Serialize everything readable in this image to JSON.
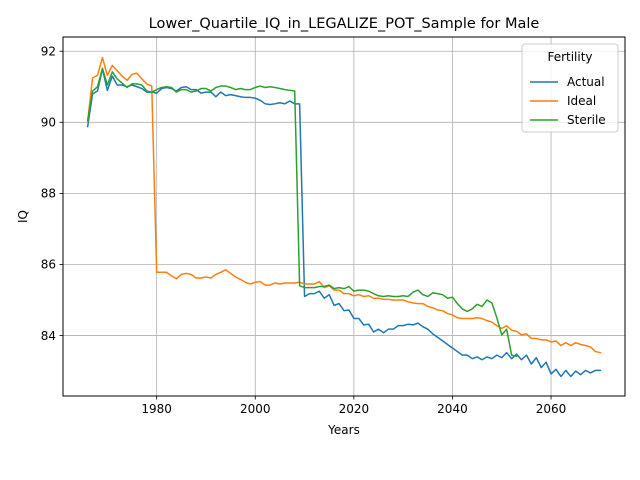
{
  "chart_data": {
    "type": "line",
    "title": "Lower_Quartile_IQ_in_LEGALIZE_POT_Sample for Male",
    "xlabel": "Years",
    "ylabel": "IQ",
    "xlim": [
      1961,
      2075
    ],
    "ylim": [
      82.3,
      92.4
    ],
    "x_ticks": [
      1980,
      2000,
      2020,
      2040,
      2060
    ],
    "y_ticks": [
      84,
      86,
      88,
      90,
      92
    ],
    "grid": true,
    "legend": {
      "title": "Fertility",
      "position": "top-right"
    },
    "series": [
      {
        "name": "Actual",
        "color": "#1f77b4",
        "x": [
          1966,
          1967,
          1968,
          1969,
          1970,
          1971,
          1972,
          1973,
          1974,
          1975,
          1976,
          1977,
          1978,
          1979,
          1980,
          1981,
          1982,
          1983,
          1984,
          1985,
          1986,
          1987,
          1988,
          1989,
          1990,
          1991,
          1992,
          1993,
          1994,
          1995,
          1996,
          1997,
          1998,
          1999,
          2000,
          2001,
          2002,
          2003,
          2004,
          2005,
          2006,
          2007,
          2008,
          2009,
          2010,
          2011,
          2012,
          2013,
          2014,
          2015,
          2016,
          2017,
          2018,
          2019,
          2020,
          2021,
          2022,
          2023,
          2024,
          2025,
          2026,
          2027,
          2028,
          2029,
          2030,
          2031,
          2032,
          2033,
          2034,
          2035,
          2036,
          2037,
          2038,
          2039,
          2040,
          2041,
          2042,
          2043,
          2044,
          2045,
          2046,
          2047,
          2048,
          2049,
          2050,
          2051,
          2052,
          2053,
          2054,
          2055,
          2056,
          2057,
          2058,
          2059,
          2060,
          2061,
          2062,
          2063,
          2064,
          2065,
          2066,
          2067,
          2068,
          2069,
          2070
        ],
        "values": [
          89.88,
          90.8,
          90.88,
          91.5,
          90.9,
          91.3,
          91.05,
          91.05,
          91.0,
          91.05,
          91.0,
          90.95,
          90.85,
          90.85,
          90.82,
          90.95,
          90.98,
          90.95,
          90.88,
          90.98,
          91.0,
          90.92,
          90.92,
          90.82,
          90.85,
          90.85,
          90.72,
          90.85,
          90.75,
          90.78,
          90.75,
          90.72,
          90.7,
          90.7,
          90.68,
          90.62,
          90.52,
          90.5,
          90.52,
          90.55,
          90.52,
          90.6,
          90.52,
          90.52,
          85.1,
          85.18,
          85.18,
          85.25,
          85.05,
          85.15,
          84.85,
          84.9,
          84.7,
          84.72,
          84.48,
          84.48,
          84.3,
          84.32,
          84.1,
          84.18,
          84.08,
          84.18,
          84.18,
          84.28,
          84.28,
          84.32,
          84.3,
          84.35,
          84.25,
          84.18,
          84.05,
          83.95,
          83.85,
          83.75,
          83.65,
          83.55,
          83.45,
          83.45,
          83.35,
          83.4,
          83.32,
          83.4,
          83.35,
          83.45,
          83.38,
          83.52,
          83.35,
          83.48,
          83.32,
          83.45,
          83.2,
          83.38,
          83.1,
          83.25,
          82.92,
          83.05,
          82.85,
          83.02,
          82.85,
          83.0,
          82.9,
          83.02,
          82.95,
          83.02,
          83.02
        ]
      },
      {
        "name": "Ideal",
        "color": "#ff7f0e",
        "x": [
          1966,
          1967,
          1968,
          1969,
          1970,
          1971,
          1972,
          1973,
          1974,
          1975,
          1976,
          1977,
          1978,
          1979,
          1980,
          1981,
          1982,
          1983,
          1984,
          1985,
          1986,
          1987,
          1988,
          1989,
          1990,
          1991,
          1992,
          1993,
          1994,
          1995,
          1996,
          1997,
          1998,
          1999,
          2000,
          2001,
          2002,
          2003,
          2004,
          2005,
          2006,
          2007,
          2008,
          2009,
          2010,
          2011,
          2012,
          2013,
          2014,
          2015,
          2016,
          2017,
          2018,
          2019,
          2020,
          2021,
          2022,
          2023,
          2024,
          2025,
          2026,
          2027,
          2028,
          2029,
          2030,
          2031,
          2032,
          2033,
          2034,
          2035,
          2036,
          2037,
          2038,
          2039,
          2040,
          2041,
          2042,
          2043,
          2044,
          2045,
          2046,
          2047,
          2048,
          2049,
          2050,
          2051,
          2052,
          2053,
          2054,
          2055,
          2056,
          2057,
          2058,
          2059,
          2060,
          2061,
          2062,
          2063,
          2064,
          2065,
          2066,
          2067,
          2068,
          2069,
          2070
        ],
        "values": [
          90.02,
          91.25,
          91.32,
          91.82,
          91.32,
          91.6,
          91.45,
          91.3,
          91.18,
          91.35,
          91.38,
          91.22,
          91.08,
          91.02,
          85.78,
          85.78,
          85.78,
          85.68,
          85.6,
          85.72,
          85.75,
          85.72,
          85.62,
          85.62,
          85.65,
          85.62,
          85.72,
          85.78,
          85.85,
          85.75,
          85.65,
          85.58,
          85.5,
          85.45,
          85.5,
          85.52,
          85.42,
          85.42,
          85.48,
          85.45,
          85.48,
          85.48,
          85.48,
          85.5,
          85.45,
          85.45,
          85.45,
          85.52,
          85.35,
          85.4,
          85.28,
          85.28,
          85.18,
          85.18,
          85.12,
          85.15,
          85.1,
          85.12,
          85.05,
          85.05,
          85.02,
          85.02,
          85.0,
          85.0,
          85.0,
          84.95,
          84.92,
          84.9,
          84.9,
          84.82,
          84.78,
          84.72,
          84.7,
          84.62,
          84.58,
          84.5,
          84.48,
          84.48,
          84.48,
          84.5,
          84.48,
          84.42,
          84.38,
          84.28,
          84.2,
          84.28,
          84.15,
          84.12,
          84.02,
          84.05,
          83.92,
          83.92,
          83.88,
          83.88,
          83.82,
          83.85,
          83.72,
          83.8,
          83.72,
          83.8,
          83.75,
          83.72,
          83.68,
          83.55,
          83.52
        ]
      },
      {
        "name": "Sterile",
        "color": "#2ca02c",
        "x": [
          1966,
          1967,
          1968,
          1969,
          1970,
          1971,
          1972,
          1973,
          1974,
          1975,
          1976,
          1977,
          1978,
          1979,
          1980,
          1981,
          1982,
          1983,
          1984,
          1985,
          1986,
          1987,
          1988,
          1989,
          1990,
          1991,
          1992,
          1993,
          1994,
          1995,
          1996,
          1997,
          1998,
          1999,
          2000,
          2001,
          2002,
          2003,
          2004,
          2005,
          2006,
          2007,
          2008,
          2009,
          2010,
          2011,
          2012,
          2013,
          2014,
          2015,
          2016,
          2017,
          2018,
          2019,
          2020,
          2021,
          2022,
          2023,
          2024,
          2025,
          2026,
          2027,
          2028,
          2029,
          2030,
          2031,
          2032,
          2033,
          2034,
          2035,
          2036,
          2037,
          2038,
          2039,
          2040,
          2041,
          2042,
          2043,
          2044,
          2045,
          2046,
          2047,
          2048,
          2049,
          2050,
          2051,
          2052,
          2053
        ],
        "values": [
          90.05,
          90.88,
          91.0,
          91.52,
          91.05,
          91.42,
          91.22,
          91.1,
          90.98,
          91.08,
          91.08,
          91.05,
          90.88,
          90.85,
          90.92,
          90.98,
          91.0,
          90.98,
          90.85,
          90.92,
          90.92,
          90.85,
          90.88,
          90.95,
          90.95,
          90.88,
          90.98,
          91.02,
          91.02,
          90.98,
          90.92,
          90.95,
          90.92,
          90.92,
          90.98,
          91.02,
          90.98,
          91.0,
          90.98,
          90.95,
          90.92,
          90.9,
          90.88,
          85.4,
          85.35,
          85.35,
          85.35,
          85.38,
          85.38,
          85.42,
          85.32,
          85.35,
          85.32,
          85.38,
          85.25,
          85.28,
          85.28,
          85.25,
          85.18,
          85.12,
          85.1,
          85.12,
          85.1,
          85.1,
          85.12,
          85.1,
          85.22,
          85.28,
          85.15,
          85.1,
          85.2,
          85.18,
          85.15,
          85.05,
          85.08,
          84.9,
          84.75,
          84.68,
          84.75,
          84.88,
          84.82,
          85.0,
          84.92,
          84.5,
          84.02,
          84.18,
          83.45,
          83.42
        ]
      }
    ]
  }
}
